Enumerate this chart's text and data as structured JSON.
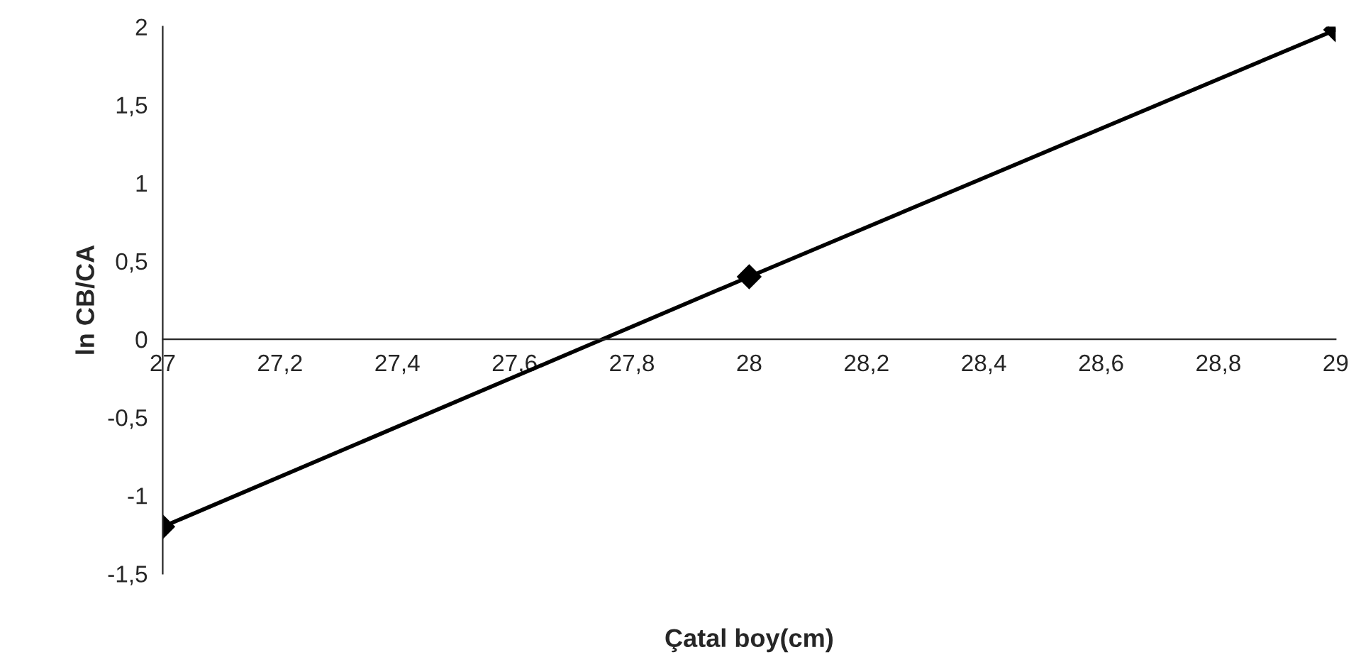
{
  "chart_data": {
    "type": "line",
    "xlabel": "Çatal boy(cm)",
    "ylabel": "ln CB/CA",
    "x": [
      27,
      28,
      29
    ],
    "series": [
      {
        "color": "#000000",
        "values": [
          -1.2,
          0.4,
          1.98
        ]
      }
    ],
    "xlim": [
      27,
      29
    ],
    "xticks": [
      {
        "value": 27,
        "label": "27"
      },
      {
        "value": 27.2,
        "label": "27,2"
      },
      {
        "value": 27.4,
        "label": "27,4"
      },
      {
        "value": 27.6,
        "label": "27,6"
      },
      {
        "value": 27.8,
        "label": "27,8"
      },
      {
        "value": 28,
        "label": "28"
      },
      {
        "value": 28.2,
        "label": "28,2"
      },
      {
        "value": 28.4,
        "label": "28,4"
      },
      {
        "value": 28.6,
        "label": "28,6"
      },
      {
        "value": 28.8,
        "label": "28,8"
      },
      {
        "value": 29,
        "label": "29"
      }
    ],
    "ylim": [
      -1.5,
      2
    ],
    "yticks": [
      {
        "value": -1.5,
        "label": "-1,5"
      },
      {
        "value": -1,
        "label": "-1"
      },
      {
        "value": -0.5,
        "label": "-0,5"
      },
      {
        "value": 0,
        "label": "0"
      },
      {
        "value": 0.5,
        "label": "0,5"
      },
      {
        "value": 1,
        "label": "1"
      },
      {
        "value": 1.5,
        "label": "1,5"
      },
      {
        "value": 2,
        "label": "2"
      }
    ],
    "grid": false,
    "marker": "diamond",
    "line_style": "solid"
  }
}
